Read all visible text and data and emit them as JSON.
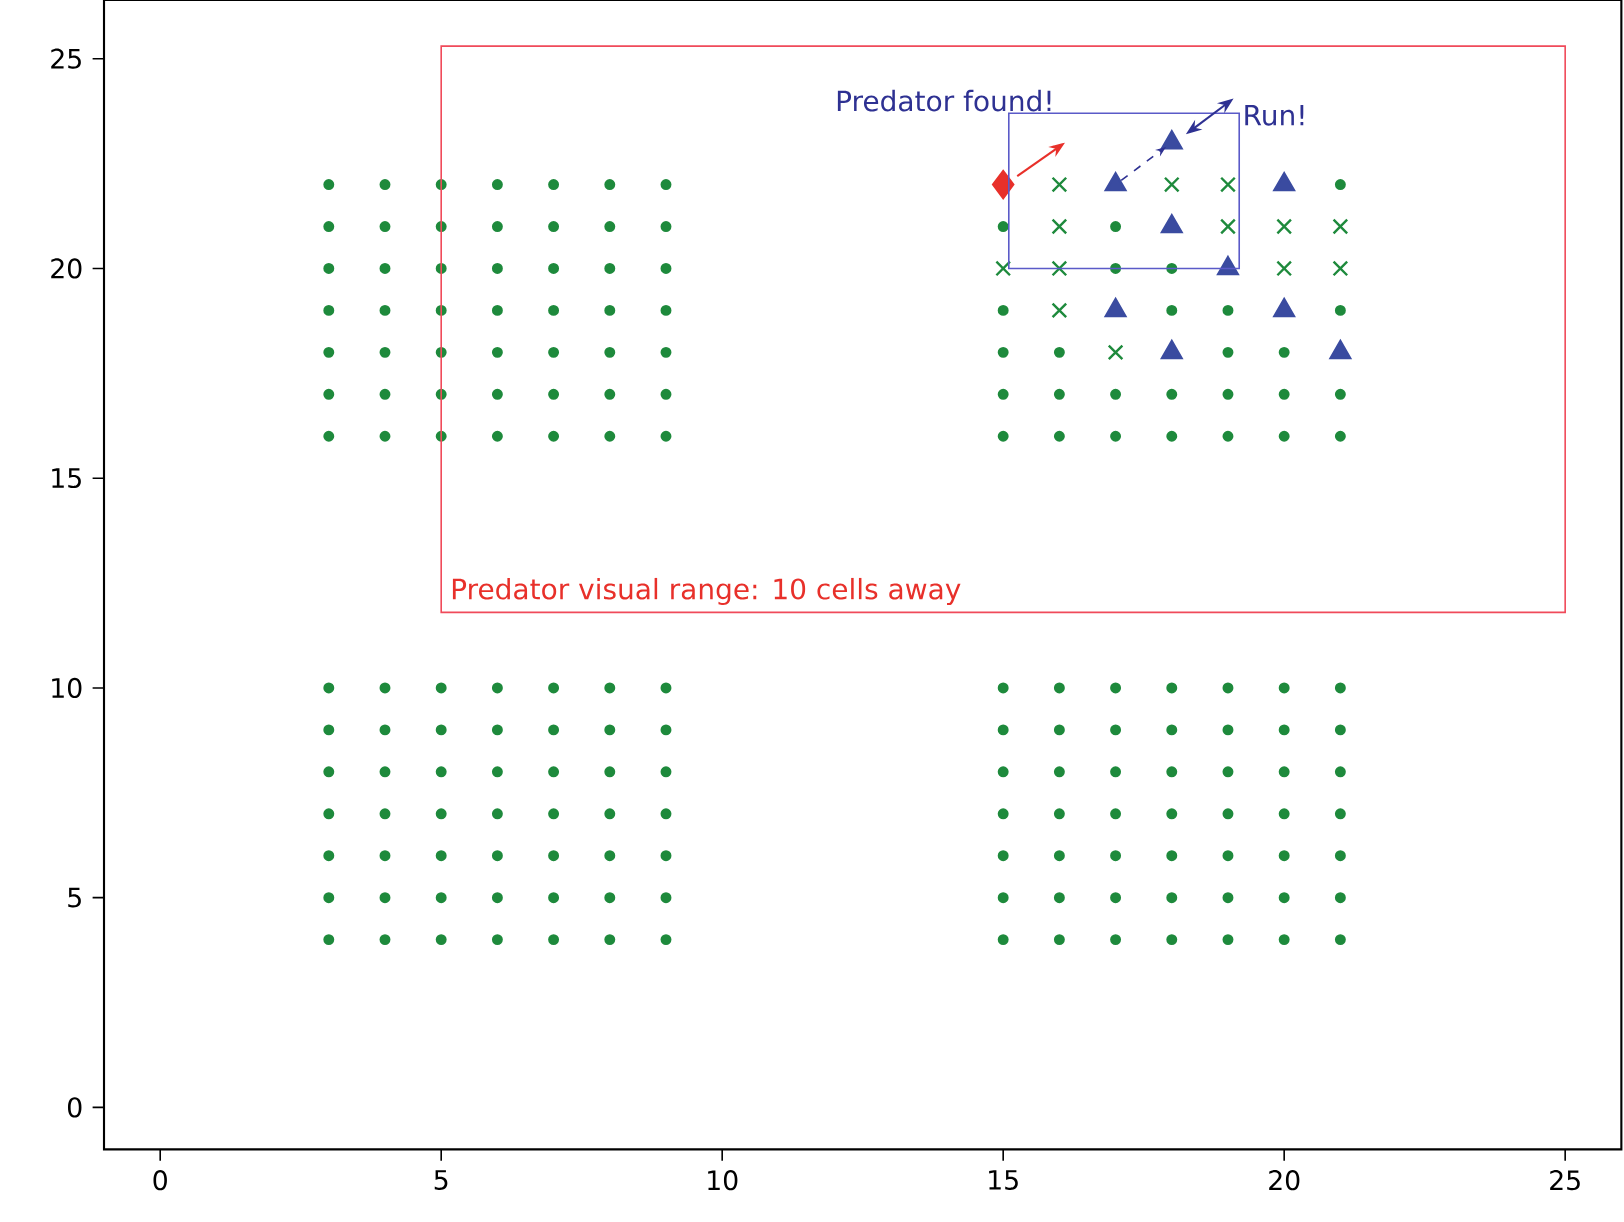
{
  "chart_data": {
    "type": "scatter",
    "xlim": [
      -1,
      26
    ],
    "ylim": [
      -1,
      26.4
    ],
    "xticks": [
      0,
      5,
      10,
      15,
      20,
      25
    ],
    "yticks": [
      0,
      5,
      10,
      15,
      20,
      25
    ],
    "grid": false,
    "annotations": [
      "Predator found!",
      "Run!",
      "Predator visual range: 10 cells away"
    ],
    "series": [
      {
        "marker": "circle",
        "color": "#1e8a3c",
        "x": [
          3,
          4,
          5,
          6,
          7,
          8,
          9,
          3,
          4,
          5,
          6,
          7,
          8,
          9,
          3,
          4,
          5,
          6,
          7,
          8,
          9,
          3,
          4,
          5,
          6,
          7,
          8,
          9,
          3,
          4,
          5,
          6,
          7,
          8,
          9,
          3,
          4,
          5,
          6,
          7,
          8,
          9,
          3,
          4,
          5,
          6,
          7,
          8,
          9,
          3,
          4,
          5,
          6,
          7,
          8,
          9,
          3,
          4,
          5,
          6,
          7,
          8,
          9,
          3,
          4,
          5,
          6,
          7,
          8,
          9,
          3,
          4,
          5,
          6,
          7,
          8,
          9,
          3,
          4,
          5,
          6,
          7,
          8,
          9,
          3,
          4,
          5,
          6,
          7,
          8,
          9,
          3,
          4,
          5,
          6,
          7,
          8,
          9,
          15,
          16,
          17,
          18,
          19,
          20,
          21,
          15,
          16,
          17,
          18,
          19,
          20,
          21,
          15,
          16,
          17,
          18,
          19,
          20,
          21,
          15,
          16,
          17,
          18,
          19,
          20,
          21,
          15,
          16,
          17,
          18,
          19,
          20,
          21,
          15,
          16,
          17,
          18,
          19,
          20,
          21,
          15,
          16,
          17,
          18,
          19,
          20,
          21,
          21,
          15,
          17,
          17,
          18,
          15,
          18,
          19,
          21,
          15,
          16,
          19,
          20,
          15,
          16,
          17,
          18,
          19,
          20,
          21,
          15,
          16,
          17,
          18,
          19,
          20,
          21
        ],
        "values": [
          22,
          22,
          22,
          22,
          22,
          22,
          22,
          21,
          21,
          21,
          21,
          21,
          21,
          21,
          20,
          20,
          20,
          20,
          20,
          20,
          20,
          19,
          19,
          19,
          19,
          19,
          19,
          19,
          18,
          18,
          18,
          18,
          18,
          18,
          18,
          17,
          17,
          17,
          17,
          17,
          17,
          17,
          16,
          16,
          16,
          16,
          16,
          16,
          16,
          10,
          10,
          10,
          10,
          10,
          10,
          10,
          9,
          9,
          9,
          9,
          9,
          9,
          9,
          8,
          8,
          8,
          8,
          8,
          8,
          8,
          7,
          7,
          7,
          7,
          7,
          7,
          7,
          6,
          6,
          6,
          6,
          6,
          6,
          6,
          5,
          5,
          5,
          5,
          5,
          5,
          5,
          4,
          4,
          4,
          4,
          4,
          4,
          4,
          10,
          10,
          10,
          10,
          10,
          10,
          10,
          9,
          9,
          9,
          9,
          9,
          9,
          9,
          8,
          8,
          8,
          8,
          8,
          8,
          8,
          7,
          7,
          7,
          7,
          7,
          7,
          7,
          6,
          6,
          6,
          6,
          6,
          6,
          6,
          5,
          5,
          5,
          5,
          5,
          5,
          5,
          4,
          4,
          4,
          4,
          4,
          4,
          4,
          22,
          21,
          21,
          20,
          20,
          19,
          19,
          19,
          19,
          18,
          18,
          18,
          18,
          17,
          17,
          17,
          17,
          17,
          17,
          17,
          16,
          16,
          16,
          16,
          16,
          16,
          16
        ]
      },
      {
        "marker": "cross",
        "color": "#1e8a3c",
        "x": [
          16,
          18,
          19,
          16,
          19,
          20,
          21,
          15,
          16,
          20,
          21,
          16,
          17
        ],
        "values": [
          22,
          22,
          22,
          21,
          21,
          21,
          21,
          20,
          20,
          20,
          20,
          19,
          18
        ]
      },
      {
        "marker": "triangle",
        "color": "#3a4ba0",
        "x": [
          18,
          17,
          20,
          18,
          19,
          17,
          20,
          18,
          21
        ],
        "values": [
          23,
          22,
          22,
          21,
          20,
          19,
          19,
          18,
          18
        ]
      },
      {
        "marker": "diamond",
        "color": "#e8302a",
        "x": [
          15
        ],
        "values": [
          22
        ]
      }
    ]
  }
}
